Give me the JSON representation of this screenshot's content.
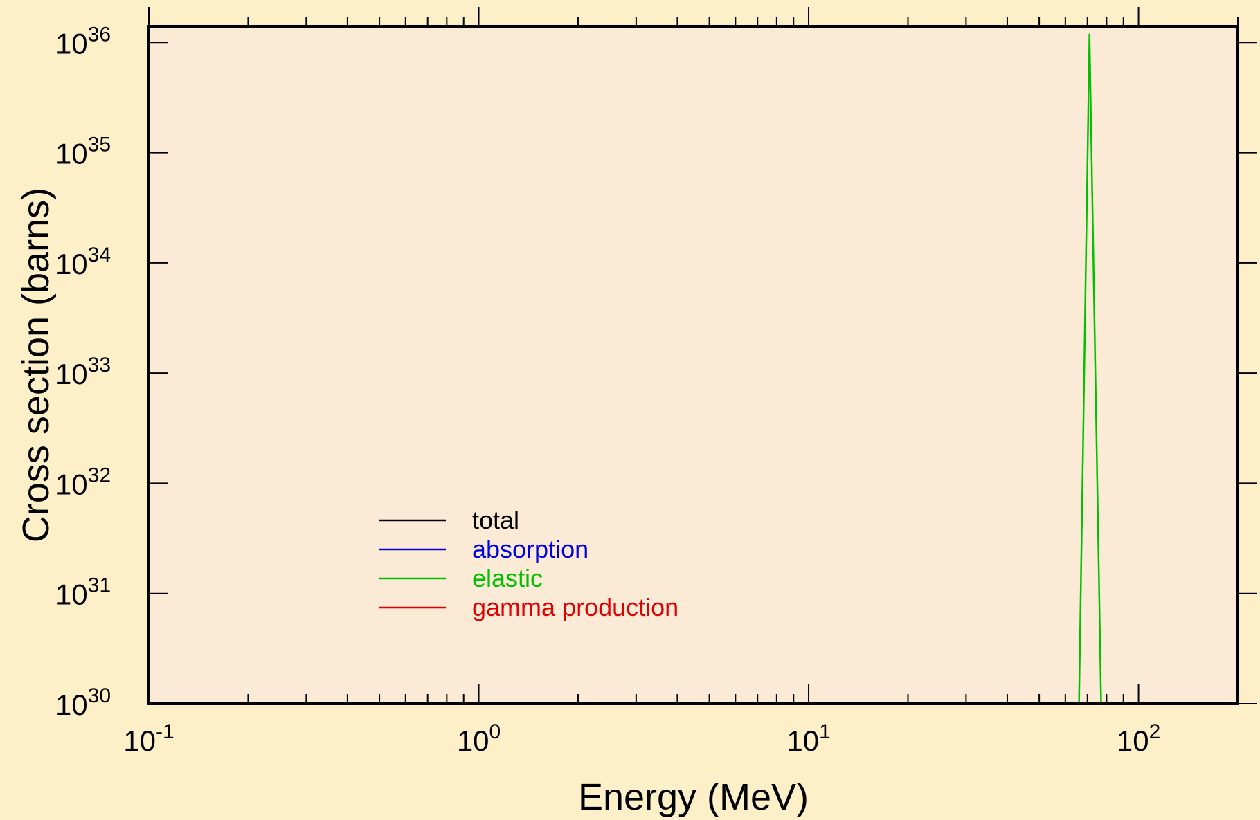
{
  "chart_data": {
    "type": "line",
    "title": "",
    "xlabel": "Energy (MeV)",
    "ylabel": "Cross section (barns)",
    "xscale": "log",
    "yscale": "log",
    "xlim": [
      0.1,
      200
    ],
    "ylim": [
      1e+30,
      1.4e+36
    ],
    "grid": false,
    "legend_placement": "lower-left",
    "x_ticks": [
      {
        "base": "10",
        "exp": "-1",
        "value": 0.1
      },
      {
        "base": "10",
        "exp": "0",
        "value": 1
      },
      {
        "base": "10",
        "exp": "1",
        "value": 10
      },
      {
        "base": "10",
        "exp": "2",
        "value": 100
      }
    ],
    "y_ticks": [
      {
        "base": "10",
        "exp": "30",
        "value": 1e+30
      },
      {
        "base": "10",
        "exp": "31",
        "value": 1e+31
      },
      {
        "base": "10",
        "exp": "32",
        "value": 1e+32
      },
      {
        "base": "10",
        "exp": "33",
        "value": 1e+33
      },
      {
        "base": "10",
        "exp": "34",
        "value": 1e+34
      },
      {
        "base": "10",
        "exp": "35",
        "value": 1e+35
      },
      {
        "base": "10",
        "exp": "36",
        "value": 1e+36
      }
    ],
    "series": [
      {
        "name": "total",
        "color": "#000000",
        "x": [
          0.1,
          200
        ],
        "y": [
          1e+30,
          1e+30
        ]
      },
      {
        "name": "absorption",
        "color": "#0000e0",
        "x": [
          0.1,
          200
        ],
        "y": [
          1e+30,
          1e+30
        ]
      },
      {
        "name": "elastic",
        "color": "#00c000",
        "x": [
          0.1,
          66,
          71,
          77,
          200
        ],
        "y": [
          1e+30,
          1e+30,
          1.2e+36,
          1e+30,
          1e+30
        ]
      },
      {
        "name": "gamma production",
        "color": "#e00000",
        "x": [
          0.12,
          200
        ],
        "y": [
          1e+30,
          1e+30
        ]
      }
    ]
  },
  "colors": {
    "page_background": "#fdf0c8",
    "plot_background": "#fbebd6",
    "axis": "#000000"
  }
}
